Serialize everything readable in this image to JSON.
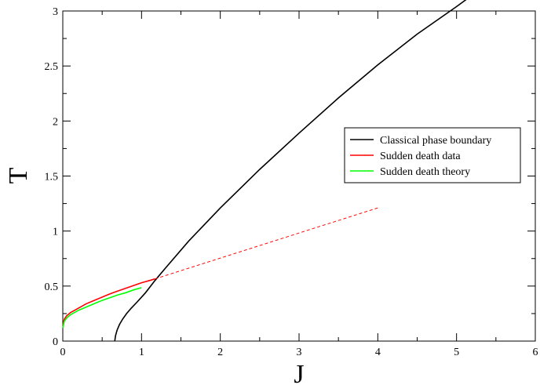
{
  "chart_data": {
    "type": "line",
    "title": "",
    "xlabel": "J",
    "ylabel": "T",
    "xlim": [
      0,
      6
    ],
    "ylim": [
      0,
      3
    ],
    "xticks": [
      0,
      1,
      2,
      3,
      4,
      5,
      6
    ],
    "yticks": [
      0,
      0.5,
      1,
      1.5,
      2,
      2.5,
      3
    ],
    "xtick_labels": [
      "0",
      "1",
      "2",
      "3",
      "4",
      "5",
      "6"
    ],
    "ytick_labels": [
      "0",
      "0.5",
      "1",
      "1.5",
      "2",
      "2.5",
      "3"
    ],
    "grid": false,
    "legend_position": "right",
    "series": [
      {
        "name": "Classical phase boundary",
        "color": "#000000",
        "style": "solid",
        "x": [
          0.66,
          0.67,
          0.69,
          0.72,
          0.76,
          0.81,
          0.87,
          0.95,
          1.05,
          1.17,
          1.3,
          1.6,
          2.0,
          2.5,
          3.0,
          3.5,
          4.0,
          4.5,
          5.0,
          5.23
        ],
        "y": [
          0.0,
          0.05,
          0.1,
          0.15,
          0.2,
          0.25,
          0.3,
          0.36,
          0.44,
          0.55,
          0.66,
          0.91,
          1.21,
          1.56,
          1.89,
          2.21,
          2.51,
          2.79,
          3.04,
          3.16
        ]
      },
      {
        "name": "Sudden death data",
        "color": "#ff0000",
        "style": "solid",
        "x": [
          0.0,
          0.02,
          0.05,
          0.1,
          0.2,
          0.3,
          0.4,
          0.5,
          0.6,
          0.7,
          0.8,
          0.9,
          1.0,
          1.1,
          1.17
        ],
        "y": [
          0.14,
          0.2,
          0.23,
          0.26,
          0.3,
          0.34,
          0.37,
          0.4,
          0.43,
          0.455,
          0.48,
          0.505,
          0.53,
          0.55,
          0.565
        ]
      },
      {
        "name": "",
        "color": "#ff0000",
        "style": "dashed",
        "x": [
          1.17,
          4.0
        ],
        "y": [
          0.565,
          1.21
        ]
      },
      {
        "name": "Sudden death theory",
        "color": "#00ff00",
        "style": "solid",
        "x": [
          0.0,
          0.02,
          0.05,
          0.1,
          0.2,
          0.3,
          0.4,
          0.5,
          0.6,
          0.7,
          0.8,
          0.9,
          1.0
        ],
        "y": [
          0.12,
          0.18,
          0.21,
          0.24,
          0.28,
          0.31,
          0.34,
          0.37,
          0.395,
          0.42,
          0.44,
          0.465,
          0.485
        ]
      }
    ]
  }
}
